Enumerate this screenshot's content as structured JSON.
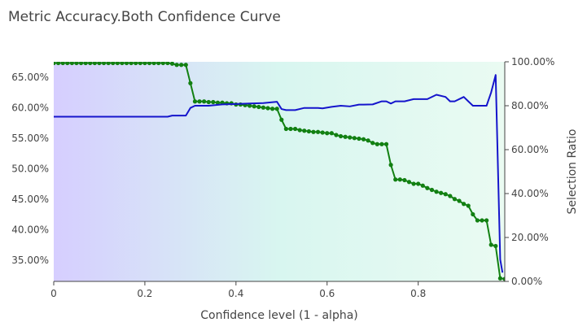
{
  "chart_data": {
    "type": "line",
    "title": "Metric Accuracy.Both Confidence Curve",
    "xlabel": "Confidence level (1 - alpha)",
    "ylabel": "",
    "y2label": "Selection Ratio",
    "xlim": [
      0,
      0.99
    ],
    "ylim": [
      31.5,
      67.5
    ],
    "y2lim": [
      0,
      100
    ],
    "x_ticks": [
      {
        "value": 0,
        "label": "0"
      },
      {
        "value": 0.2,
        "label": "0.2"
      },
      {
        "value": 0.4,
        "label": "0.4"
      },
      {
        "value": 0.6,
        "label": "0.6"
      },
      {
        "value": 0.8,
        "label": "0.8"
      }
    ],
    "y_ticks": [
      {
        "value": 35,
        "label": "35.00%"
      },
      {
        "value": 40,
        "label": "40.00%"
      },
      {
        "value": 45,
        "label": "45.00%"
      },
      {
        "value": 50,
        "label": "50.00%"
      },
      {
        "value": 55,
        "label": "55.00%"
      },
      {
        "value": 60,
        "label": "60.00%"
      },
      {
        "value": 65,
        "label": "65.00%"
      }
    ],
    "y2_ticks": [
      {
        "value": 0,
        "label": "0.00%"
      },
      {
        "value": 20,
        "label": "20.00%"
      },
      {
        "value": 40,
        "label": "40.00%"
      },
      {
        "value": 60,
        "label": "60.00%"
      },
      {
        "value": 80,
        "label": "80.00%"
      },
      {
        "value": 100,
        "label": "100.00%"
      }
    ],
    "grid": false,
    "background_gradient": [
      "#d6ceff",
      "#d8f6f0",
      "#eafbf2"
    ],
    "series": [
      {
        "axis": "left",
        "color": "#128012",
        "markers": true,
        "x": [
          0,
          0.01,
          0.02,
          0.03,
          0.04,
          0.05,
          0.06,
          0.07,
          0.08,
          0.09,
          0.1,
          0.11,
          0.12,
          0.13,
          0.14,
          0.15,
          0.16,
          0.17,
          0.18,
          0.19,
          0.2,
          0.21,
          0.22,
          0.23,
          0.24,
          0.25,
          0.26,
          0.27,
          0.28,
          0.29,
          0.3,
          0.31,
          0.32,
          0.33,
          0.34,
          0.35,
          0.36,
          0.37,
          0.38,
          0.39,
          0.4,
          0.41,
          0.42,
          0.43,
          0.44,
          0.45,
          0.46,
          0.47,
          0.48,
          0.49,
          0.5,
          0.51,
          0.52,
          0.53,
          0.54,
          0.55,
          0.56,
          0.57,
          0.58,
          0.59,
          0.6,
          0.61,
          0.62,
          0.63,
          0.64,
          0.65,
          0.66,
          0.67,
          0.68,
          0.69,
          0.7,
          0.71,
          0.72,
          0.73,
          0.74,
          0.75,
          0.76,
          0.77,
          0.78,
          0.79,
          0.8,
          0.81,
          0.82,
          0.83,
          0.84,
          0.85,
          0.86,
          0.87,
          0.88,
          0.89,
          0.9,
          0.91,
          0.92,
          0.93,
          0.94,
          0.95,
          0.96,
          0.97,
          0.98,
          0.99
        ],
        "values": [
          67.3,
          67.3,
          67.3,
          67.3,
          67.3,
          67.3,
          67.3,
          67.3,
          67.3,
          67.3,
          67.3,
          67.3,
          67.3,
          67.3,
          67.3,
          67.3,
          67.3,
          67.3,
          67.3,
          67.3,
          67.3,
          67.3,
          67.3,
          67.3,
          67.3,
          67.3,
          67.2,
          67.0,
          67.0,
          67.0,
          64.0,
          61.0,
          61.0,
          61.0,
          60.9,
          60.9,
          60.8,
          60.8,
          60.7,
          60.7,
          60.5,
          60.5,
          60.4,
          60.3,
          60.2,
          60.1,
          60.0,
          59.9,
          59.8,
          59.8,
          58.0,
          56.5,
          56.5,
          56.5,
          56.3,
          56.2,
          56.1,
          56.0,
          56.0,
          55.9,
          55.8,
          55.8,
          55.5,
          55.3,
          55.2,
          55.1,
          55.0,
          54.9,
          54.8,
          54.6,
          54.2,
          54.0,
          54.0,
          54.0,
          50.6,
          48.2,
          48.2,
          48.1,
          47.8,
          47.5,
          47.5,
          47.2,
          46.8,
          46.5,
          46.2,
          46.0,
          45.8,
          45.5,
          45.0,
          44.7,
          44.2,
          43.9,
          42.5,
          41.5,
          41.5,
          41.5,
          37.5,
          37.3,
          32.0,
          31.9
        ]
      },
      {
        "axis": "right",
        "color": "#1515cc",
        "markers": false,
        "x": [
          0,
          0.05,
          0.1,
          0.15,
          0.2,
          0.25,
          0.26,
          0.29,
          0.3,
          0.31,
          0.34,
          0.37,
          0.4,
          0.43,
          0.46,
          0.49,
          0.5,
          0.51,
          0.53,
          0.55,
          0.58,
          0.59,
          0.61,
          0.63,
          0.65,
          0.67,
          0.68,
          0.7,
          0.72,
          0.73,
          0.74,
          0.75,
          0.77,
          0.79,
          0.82,
          0.84,
          0.86,
          0.87,
          0.88,
          0.9,
          0.91,
          0.92,
          0.95,
          0.96,
          0.97,
          0.98,
          0.985
        ],
        "values": [
          75,
          75,
          75,
          75,
          75,
          75,
          75.5,
          75.5,
          79,
          80,
          80,
          80.6,
          80.8,
          81,
          81.2,
          81.8,
          78.5,
          78,
          78,
          79,
          79,
          78.8,
          79.5,
          80,
          79.7,
          80.5,
          80.5,
          80.6,
          82,
          82,
          81,
          82,
          82,
          83,
          83,
          85,
          84,
          82,
          82,
          84,
          82,
          80,
          80,
          86,
          94,
          10,
          4
        ]
      }
    ]
  }
}
